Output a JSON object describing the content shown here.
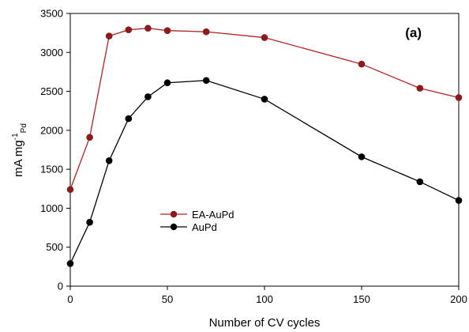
{
  "chart_data": {
    "type": "line",
    "panel_label": "(a)",
    "xlabel": "Number of CV cycles",
    "ylabel": {
      "main": "mA mg",
      "superscript": "-1",
      "subscript": "Pd"
    },
    "xlim": [
      0,
      200
    ],
    "ylim": [
      0,
      3500
    ],
    "xticks": [
      0,
      50,
      100,
      150,
      200
    ],
    "yticks": [
      0,
      500,
      1000,
      1500,
      2000,
      2500,
      3000,
      3500
    ],
    "grid": false,
    "legend_position": "bottom-center",
    "series": [
      {
        "name": "EA-AuPd",
        "color": "#b22222",
        "marker_color": "#8b1a1a",
        "x": [
          0,
          10,
          20,
          30,
          40,
          50,
          70,
          100,
          150,
          180,
          200
        ],
        "y": [
          1240,
          1910,
          3210,
          3290,
          3310,
          3280,
          3265,
          3190,
          2850,
          2540,
          2420
        ]
      },
      {
        "name": "AuPd",
        "color": "#000000",
        "marker_color": "#000000",
        "x": [
          0,
          10,
          20,
          30,
          40,
          50,
          70,
          100,
          150,
          180,
          200
        ],
        "y": [
          290,
          820,
          1610,
          2150,
          2430,
          2610,
          2640,
          2400,
          1660,
          1340,
          1100
        ]
      }
    ]
  }
}
